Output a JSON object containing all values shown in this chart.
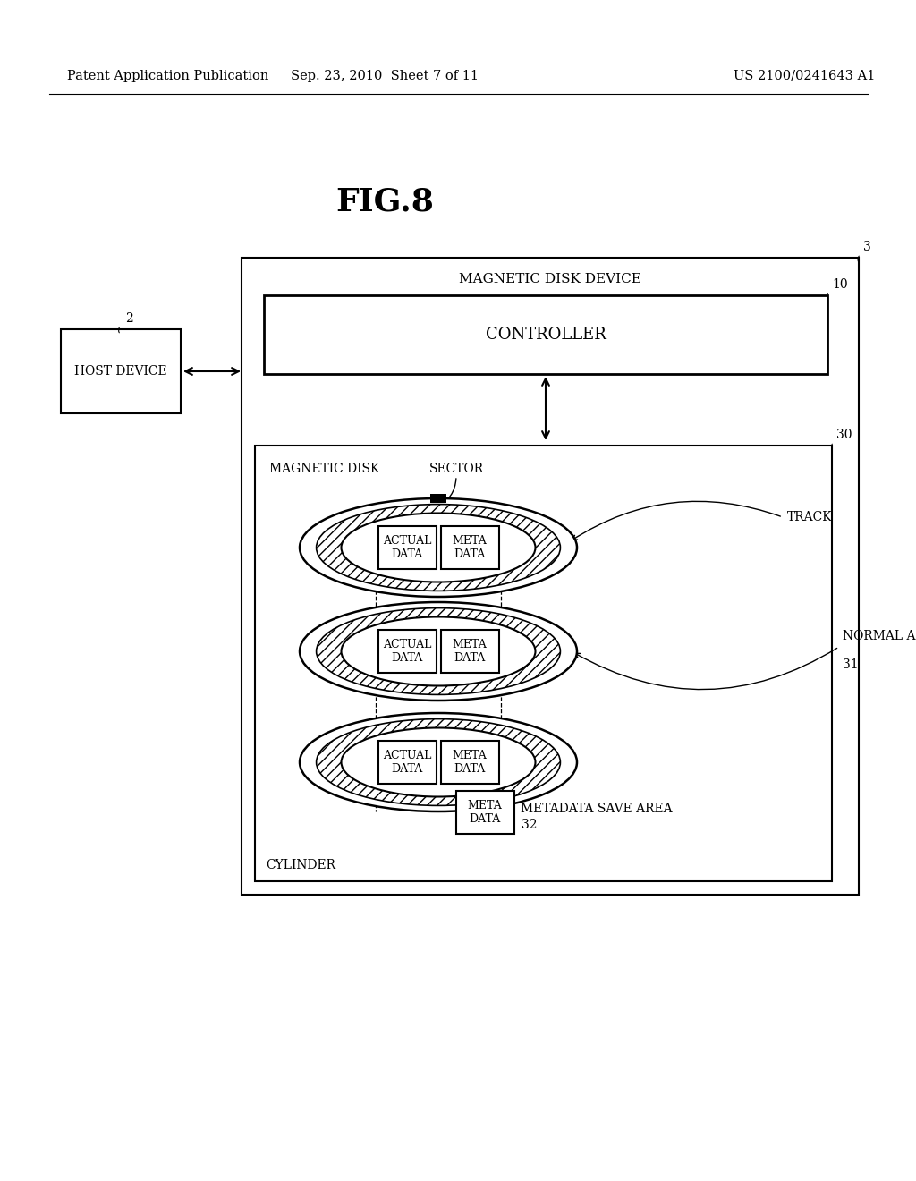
{
  "fig_title": "FIG.8",
  "header_left": "Patent Application Publication",
  "header_mid": "Sep. 23, 2010  Sheet 7 of 11",
  "header_right": "US 2100/0241643 A1",
  "bg_color": "#ffffff",
  "text_color": "#000000",
  "label_ref_num": "3",
  "label_ref2": "2",
  "label_ref10": "10",
  "label_ref30": "30",
  "label_magnetic_disk_device": "MAGNETIC DISK DEVICE",
  "label_controller": "CONTROLLER",
  "label_host_device": "HOST DEVICE",
  "label_magnetic_disk": "MAGNETIC DISK",
  "label_sector": "SECTOR",
  "label_track": "TRACK",
  "label_normal_area": "NORMAL AREA",
  "label_normal_area_num": "31",
  "label_metadata_save_area": "METADATA SAVE AREA",
  "label_metadata_save_area_num": "32",
  "label_cylinder": "CYLINDER",
  "label_actual_data": "ACTUAL\nDATA",
  "label_meta_data": "META\nDATA"
}
